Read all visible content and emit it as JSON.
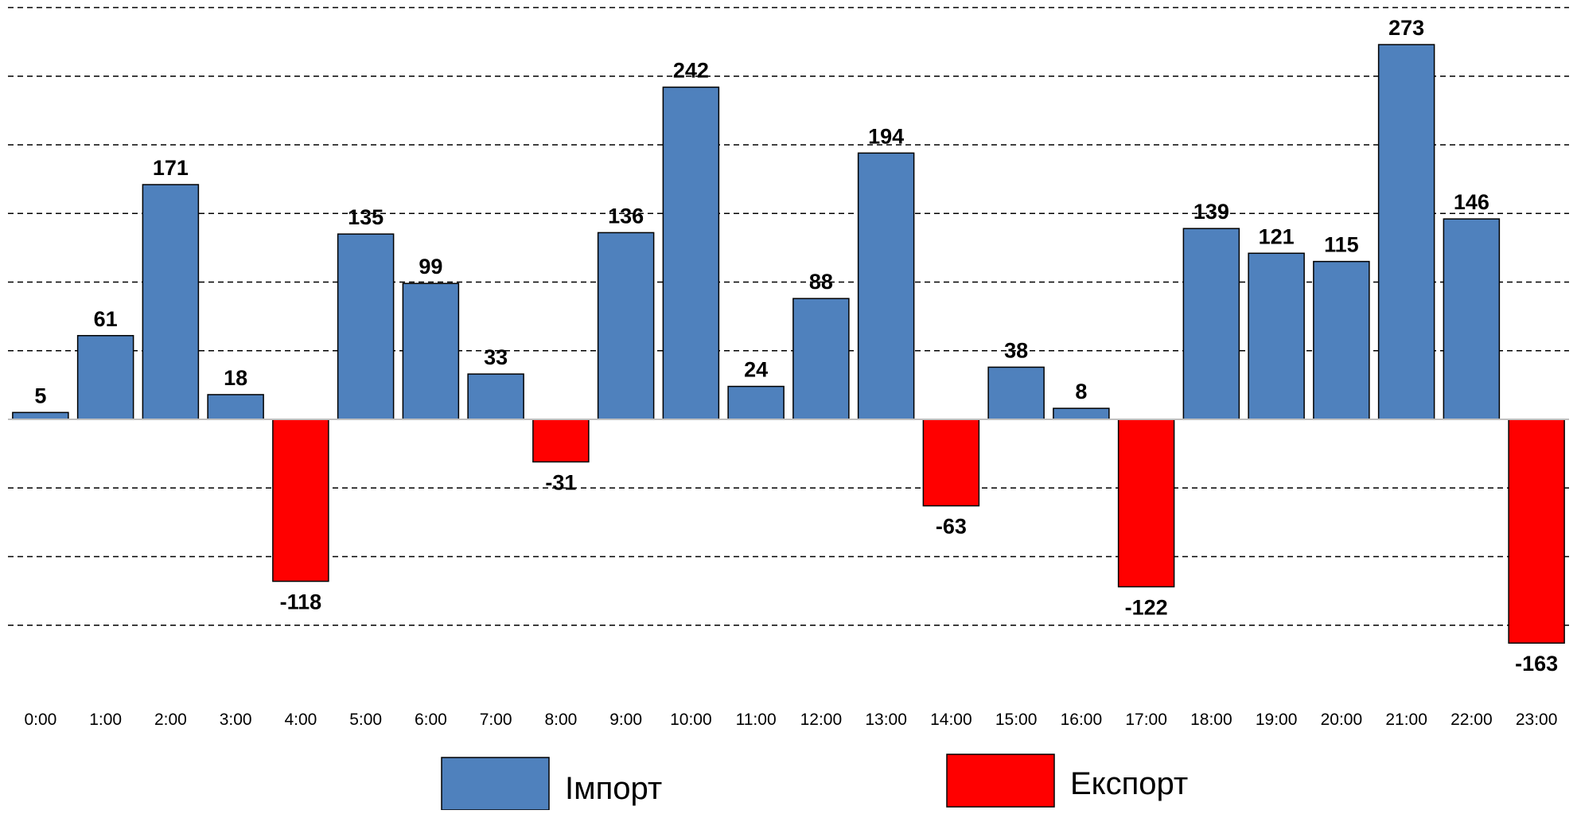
{
  "chart_data": {
    "type": "bar",
    "categories": [
      "0:00",
      "1:00",
      "2:00",
      "3:00",
      "4:00",
      "5:00",
      "6:00",
      "7:00",
      "8:00",
      "9:00",
      "10:00",
      "11:00",
      "12:00",
      "13:00",
      "14:00",
      "15:00",
      "16:00",
      "17:00",
      "18:00",
      "19:00",
      "20:00",
      "21:00",
      "22:00",
      "23:00"
    ],
    "values": [
      5,
      61,
      171,
      18,
      -118,
      135,
      99,
      33,
      -31,
      136,
      242,
      24,
      88,
      194,
      -63,
      38,
      8,
      -122,
      139,
      121,
      115,
      273,
      146,
      -163
    ],
    "series": [
      {
        "name": "Імпорт",
        "color": "#4f81bd",
        "sign": "positive"
      },
      {
        "name": "Експорт",
        "color": "#ff0000",
        "sign": "negative"
      }
    ],
    "title": "",
    "xlabel": "",
    "ylabel": "",
    "ylim": [
      -200,
      300
    ],
    "grid_step": 50,
    "grid": true,
    "grid_style": "dashed",
    "show_y_tick_labels": false,
    "data_labels": true,
    "legend_position": "bottom-center"
  }
}
